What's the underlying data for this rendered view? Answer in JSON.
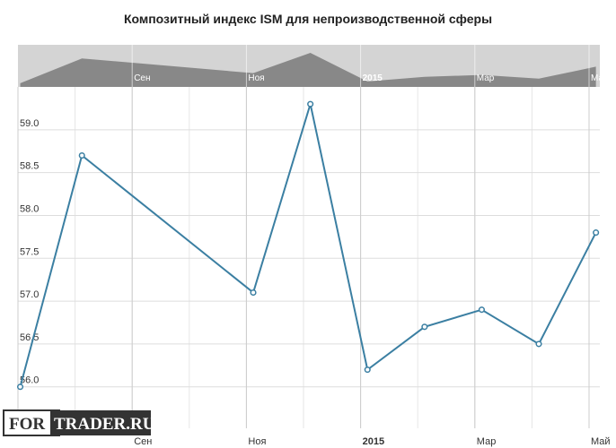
{
  "chart_data": {
    "type": "line",
    "title": "Композитный индекс ISM для непроизводственной сферы",
    "x": [
      "2014-07",
      "2014-08",
      "2014-11",
      "2014-12",
      "2015-01",
      "2015-02",
      "2015-03",
      "2015-04",
      "2015-05"
    ],
    "series": [
      {
        "name": "ISM",
        "color": "#3b7fa2",
        "values": [
          56.0,
          58.7,
          57.1,
          59.3,
          56.2,
          56.7,
          56.9,
          56.5,
          57.8
        ]
      }
    ],
    "xlim": [
      "2014-07",
      "2015-05"
    ],
    "xticks": [
      {
        "value": "2014-09",
        "label": "Сен"
      },
      {
        "value": "2014-11",
        "label": "Ноя"
      },
      {
        "value": "2015-01",
        "label": "2015"
      },
      {
        "value": "2015-03",
        "label": "Мар"
      },
      {
        "value": "2015-05",
        "label": "Май"
      }
    ],
    "ylim": [
      55.6,
      59.5
    ],
    "yticks": [
      {
        "value": 56,
        "label": "56.0"
      },
      {
        "value": 56.5,
        "label": "56.5"
      },
      {
        "value": 57,
        "label": "57.0"
      },
      {
        "value": 57.5,
        "label": "57.5"
      },
      {
        "value": 58,
        "label": "58.0"
      },
      {
        "value": 58.5,
        "label": "58.5"
      },
      {
        "value": 59,
        "label": "59.0"
      }
    ],
    "grid": true
  },
  "watermark": [
    "FOR",
    "TRADER.RU"
  ]
}
